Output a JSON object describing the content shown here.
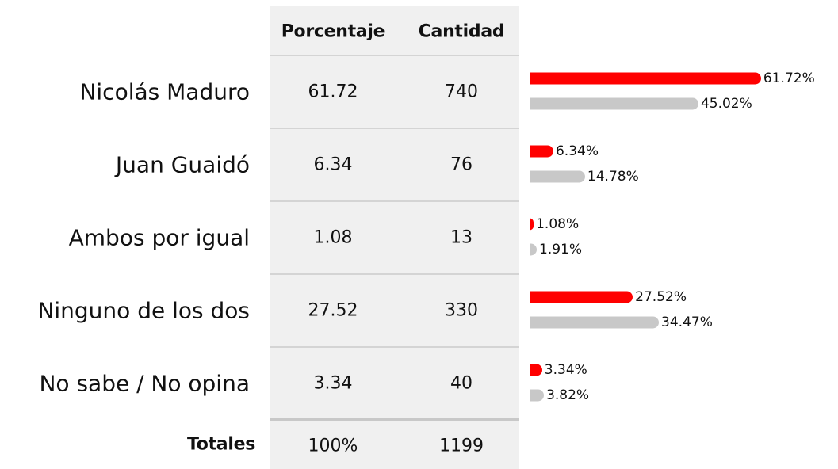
{
  "table": {
    "headers": [
      "Porcentaje",
      "Cantidad"
    ],
    "rows": [
      {
        "label": "Nicolás Maduro",
        "porcentaje": 61.72,
        "cantidad": 740,
        "bars": [
          61.72,
          45.02
        ],
        "bar_labels": [
          "61.72%",
          "45.02%"
        ]
      },
      {
        "label": "Juan Guaidó",
        "porcentaje": 6.34,
        "cantidad": 76,
        "bars": [
          6.34,
          14.78
        ],
        "bar_labels": [
          "6.34%",
          "14.78%"
        ]
      },
      {
        "label": "Ambos por igual",
        "porcentaje": 1.08,
        "cantidad": 13,
        "bars": [
          1.08,
          1.91
        ],
        "bar_labels": [
          "1.08%",
          "1.91%"
        ]
      },
      {
        "label": "Ninguno de los dos",
        "porcentaje": 27.52,
        "cantidad": 330,
        "bars": [
          27.52,
          34.47
        ],
        "bar_labels": [
          "27.52%",
          "34.47%"
        ]
      },
      {
        "label": "No sabe / No opina",
        "porcentaje": 3.34,
        "cantidad": 40,
        "bars": [
          3.34,
          3.82
        ],
        "bar_labels": [
          "3.34%",
          "3.82%"
        ]
      }
    ],
    "totals": {
      "label": "Totales",
      "porcentaje": "100%",
      "cantidad": 1199
    },
    "bar_colors": [
      "#ff0000",
      "#c8c8c8"
    ]
  }
}
